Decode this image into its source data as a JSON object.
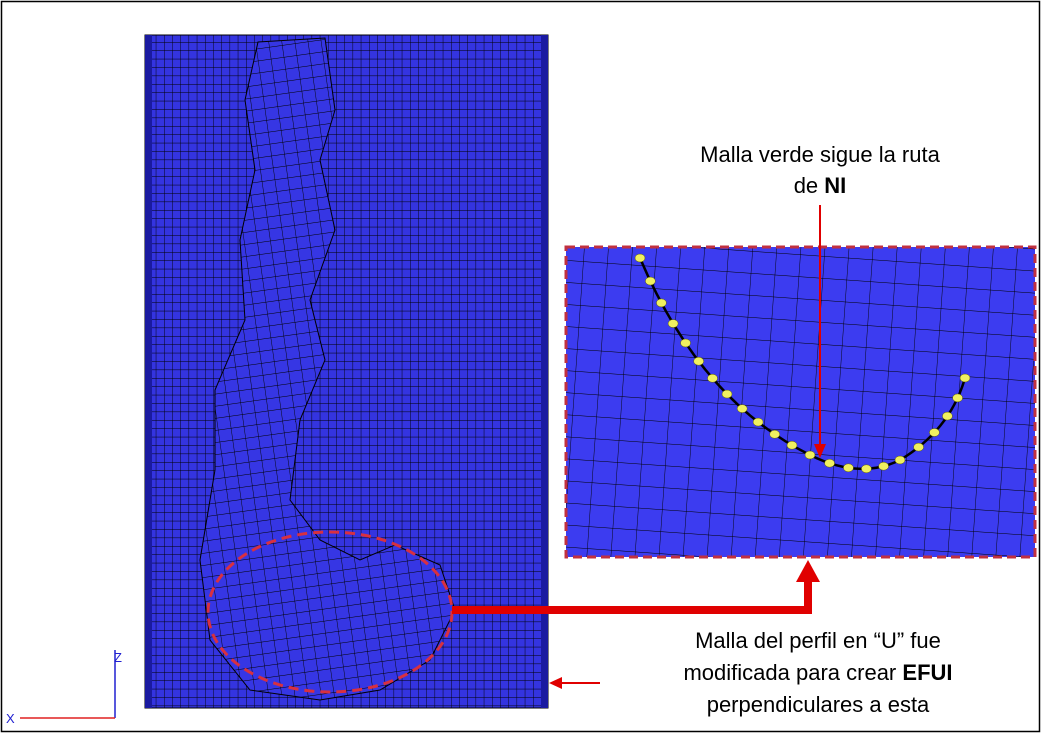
{
  "callout_top": {
    "line1": "Malla verde sigue la ruta",
    "line2_prefix": "de",
    "line2_bold": "NI"
  },
  "callout_bottom": {
    "line1": "Malla del perfil en “U” fue",
    "line2_prefix": "modificada para crear",
    "line2_bold": "EFUI",
    "line3": "perpendiculares a esta"
  },
  "axes": {
    "z": "Z",
    "x": "X"
  }
}
